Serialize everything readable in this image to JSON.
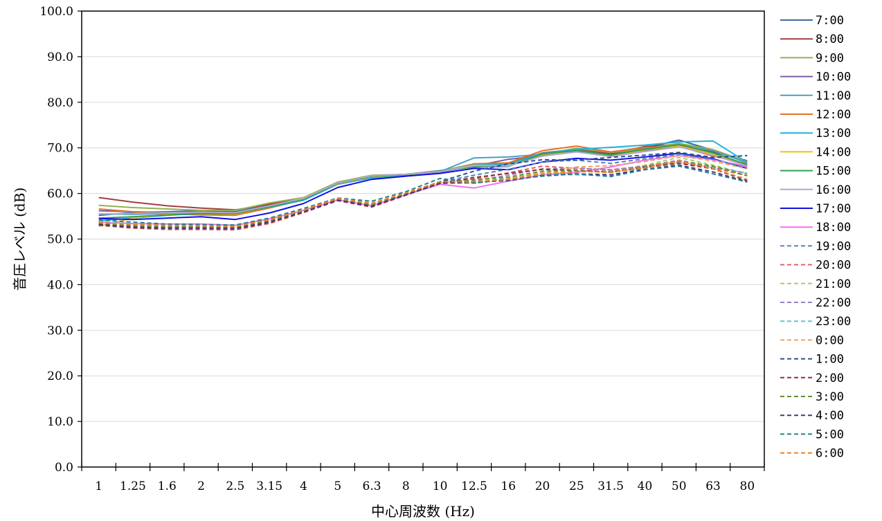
{
  "chart_data": {
    "type": "line",
    "xlabel": "中心周波数 (Hz)",
    "ylabel": "音圧レベル (dB)",
    "ylim": [
      0,
      100
    ],
    "ytick_step": 10,
    "ytick_labels": [
      "0.0",
      "10.0",
      "20.0",
      "30.0",
      "40.0",
      "50.0",
      "60.0",
      "70.0",
      "80.0",
      "90.0",
      "100.0"
    ],
    "categories": [
      "1",
      "1.25",
      "1.6",
      "2",
      "2.5",
      "3.15",
      "4",
      "5",
      "6.3",
      "8",
      "10",
      "12.5",
      "16",
      "20",
      "25",
      "31.5",
      "40",
      "50",
      "63",
      "80"
    ],
    "grid": "horizontal",
    "legend_position": "right",
    "series": [
      {
        "name": "7:00",
        "color": "#3b6aa0",
        "dashed": false,
        "values": [
          55.2,
          55.8,
          56.0,
          56.2,
          56.0,
          57.5,
          58.8,
          62.3,
          63.8,
          64.2,
          64.8,
          66.5,
          66.0,
          68.5,
          69.8,
          68.5,
          70.0,
          71.7,
          69.5,
          66.8
        ]
      },
      {
        "name": "8:00",
        "color": "#a0403a",
        "dashed": false,
        "values": [
          59.1,
          58.1,
          57.3,
          56.8,
          56.4,
          57.6,
          59.0,
          62.5,
          63.8,
          64.2,
          65.0,
          66.2,
          66.6,
          68.9,
          69.7,
          68.7,
          70.3,
          70.8,
          69.1,
          67.2
        ]
      },
      {
        "name": "9:00",
        "color": "#93b050",
        "dashed": false,
        "values": [
          57.4,
          56.9,
          56.6,
          56.3,
          56.3,
          57.9,
          59.1,
          62.5,
          64.0,
          64.2,
          64.9,
          66.3,
          66.5,
          68.7,
          69.9,
          69.0,
          69.8,
          71.0,
          69.6,
          67.0
        ]
      },
      {
        "name": "10:00",
        "color": "#7b5aa6",
        "dashed": false,
        "values": [
          56.2,
          56.0,
          55.8,
          55.7,
          55.6,
          57.2,
          58.8,
          62.2,
          63.7,
          64.1,
          64.7,
          66.0,
          67.5,
          68.3,
          69.2,
          68.2,
          69.5,
          70.3,
          68.6,
          66.3
        ]
      },
      {
        "name": "11:00",
        "color": "#4aa0c0",
        "dashed": false,
        "values": [
          55.5,
          55.4,
          55.6,
          55.6,
          55.5,
          57.0,
          58.6,
          62.0,
          63.6,
          64.1,
          64.8,
          67.8,
          68.0,
          68.6,
          69.5,
          68.4,
          69.8,
          70.6,
          69.4,
          66.7
        ]
      },
      {
        "name": "12:00",
        "color": "#e87020",
        "dashed": false,
        "values": [
          56.6,
          56.0,
          55.5,
          55.3,
          55.2,
          56.8,
          58.6,
          62.1,
          63.6,
          64.0,
          64.9,
          66.5,
          66.7,
          69.4,
          70.4,
          69.1,
          70.1,
          70.3,
          68.2,
          66.5
        ]
      },
      {
        "name": "13:00",
        "color": "#20b0e0",
        "dashed": false,
        "values": [
          54.0,
          54.6,
          55.2,
          55.6,
          55.6,
          57.0,
          58.5,
          62.0,
          63.4,
          64.0,
          65.0,
          66.3,
          66.4,
          68.8,
          69.7,
          70.1,
          70.6,
          71.3,
          71.5,
          66.8
        ]
      },
      {
        "name": "14:00",
        "color": "#f4c000",
        "dashed": false,
        "values": [
          52.8,
          54.6,
          55.4,
          55.6,
          55.5,
          57.1,
          59.0,
          62.1,
          63.7,
          64.1,
          64.9,
          66.2,
          66.0,
          68.6,
          69.2,
          68.1,
          69.6,
          70.5,
          68.7,
          66.1
        ]
      },
      {
        "name": "15:00",
        "color": "#30a050",
        "dashed": false,
        "values": [
          54.6,
          54.9,
          55.3,
          55.6,
          55.6,
          57.1,
          58.7,
          62.2,
          63.8,
          64.1,
          64.9,
          65.8,
          65.9,
          68.7,
          69.4,
          68.4,
          69.7,
          70.7,
          68.9,
          66.3
        ]
      },
      {
        "name": "16:00",
        "color": "#b0a8d0",
        "dashed": false,
        "values": [
          55.5,
          55.6,
          55.8,
          55.9,
          55.8,
          57.3,
          58.9,
          62.3,
          63.9,
          64.2,
          64.8,
          66.1,
          66.0,
          68.2,
          69.1,
          68.1,
          69.2,
          70.2,
          68.4,
          66.0
        ]
      },
      {
        "name": "17:00",
        "color": "#1010e0",
        "dashed": false,
        "values": [
          54.5,
          54.3,
          54.6,
          54.9,
          54.3,
          55.7,
          57.8,
          61.3,
          63.1,
          63.8,
          64.4,
          65.5,
          65.2,
          66.9,
          67.7,
          67.3,
          68.0,
          68.8,
          67.6,
          65.5
        ]
      },
      {
        "name": "18:00",
        "color": "#f070f0",
        "dashed": false,
        "values": [
          53.7,
          53.4,
          53.3,
          53.3,
          53.0,
          54.4,
          56.3,
          58.6,
          57.3,
          59.7,
          62.0,
          61.2,
          62.7,
          64.1,
          64.6,
          65.8,
          67.3,
          68.3,
          67.4,
          65.9
        ]
      },
      {
        "name": "19:00",
        "color": "#5080c0",
        "dashed": true,
        "values": [
          53.3,
          52.8,
          52.7,
          52.6,
          52.5,
          53.9,
          56.0,
          58.6,
          57.6,
          59.9,
          62.5,
          64.0,
          65.3,
          66.9,
          67.3,
          66.6,
          67.6,
          68.6,
          67.5,
          65.6
        ]
      },
      {
        "name": "20:00",
        "color": "#e06060",
        "dashed": true,
        "values": [
          53.0,
          52.4,
          52.1,
          52.1,
          52.0,
          53.4,
          55.8,
          58.4,
          57.0,
          59.6,
          62.2,
          63.2,
          64.5,
          66.0,
          65.5,
          65.2,
          66.0,
          66.9,
          65.6,
          63.9
        ]
      },
      {
        "name": "21:00",
        "color": "#a0d060",
        "dashed": true,
        "values": [
          53.4,
          52.9,
          52.6,
          52.5,
          52.5,
          53.9,
          56.0,
          58.7,
          57.3,
          59.8,
          62.3,
          62.2,
          63.2,
          64.5,
          64.8,
          64.9,
          66.2,
          67.9,
          66.2,
          64.3
        ]
      },
      {
        "name": "22:00",
        "color": "#9880c0",
        "dashed": true,
        "values": [
          53.3,
          52.8,
          52.6,
          52.5,
          52.4,
          53.8,
          56.0,
          58.6,
          57.4,
          59.8,
          62.3,
          62.8,
          64.0,
          65.4,
          65.6,
          65.1,
          66.0,
          67.3,
          65.9,
          64.4
        ]
      },
      {
        "name": "23:00",
        "color": "#60c0d8",
        "dashed": true,
        "values": [
          53.8,
          53.3,
          53.0,
          52.9,
          52.8,
          54.2,
          56.3,
          58.9,
          57.9,
          60.0,
          62.6,
          62.5,
          63.4,
          64.2,
          64.1,
          63.9,
          65.7,
          66.7,
          65.7,
          64.5
        ]
      },
      {
        "name": "0:00",
        "color": "#f4a060",
        "dashed": true,
        "values": [
          53.6,
          53.2,
          52.9,
          52.9,
          52.8,
          54.1,
          56.2,
          58.8,
          57.8,
          60.0,
          62.4,
          62.2,
          63.3,
          64.6,
          65.8,
          66.1,
          67.0,
          68.3,
          67.1,
          65.4
        ]
      },
      {
        "name": "1:00",
        "color": "#2a5090",
        "dashed": true,
        "values": [
          53.3,
          52.8,
          52.6,
          52.6,
          52.5,
          53.9,
          56.1,
          58.7,
          57.6,
          59.9,
          62.6,
          64.9,
          66.5,
          67.4,
          67.3,
          67.9,
          68.4,
          69.0,
          67.9,
          68.3
        ]
      },
      {
        "name": "2:00",
        "color": "#903030",
        "dashed": true,
        "values": [
          53.1,
          52.5,
          52.3,
          52.3,
          52.2,
          53.6,
          55.9,
          58.5,
          57.1,
          59.7,
          62.3,
          63.5,
          64.4,
          65.3,
          65.1,
          64.7,
          65.7,
          66.6,
          65.4,
          62.8
        ]
      },
      {
        "name": "3:00",
        "color": "#609030",
        "dashed": true,
        "values": [
          53.4,
          52.9,
          52.7,
          52.7,
          52.6,
          54.0,
          56.1,
          58.7,
          57.5,
          59.8,
          62.5,
          63.0,
          63.6,
          64.9,
          65.0,
          64.6,
          65.8,
          67.1,
          66.0,
          63.9
        ]
      },
      {
        "name": "4:00",
        "color": "#503080",
        "dashed": true,
        "values": [
          53.2,
          52.6,
          52.4,
          52.3,
          52.3,
          53.7,
          55.9,
          58.5,
          57.2,
          59.7,
          62.2,
          62.5,
          62.8,
          63.9,
          64.3,
          64.1,
          65.3,
          66.2,
          64.7,
          62.6
        ]
      },
      {
        "name": "5:00",
        "color": "#208090",
        "dashed": true,
        "values": [
          54.2,
          53.7,
          53.3,
          53.2,
          53.1,
          54.6,
          56.7,
          59.0,
          58.3,
          60.4,
          63.3,
          62.3,
          63.0,
          63.8,
          64.3,
          63.7,
          65.2,
          66.0,
          64.3,
          62.5
        ]
      },
      {
        "name": "6:00",
        "color": "#f08020",
        "dashed": true,
        "values": [
          53.6,
          53.2,
          53.0,
          52.9,
          52.8,
          54.3,
          56.4,
          58.9,
          57.8,
          60.1,
          62.6,
          62.6,
          63.1,
          64.3,
          64.8,
          64.7,
          65.6,
          67.2,
          65.4,
          63.1
        ]
      }
    ]
  }
}
